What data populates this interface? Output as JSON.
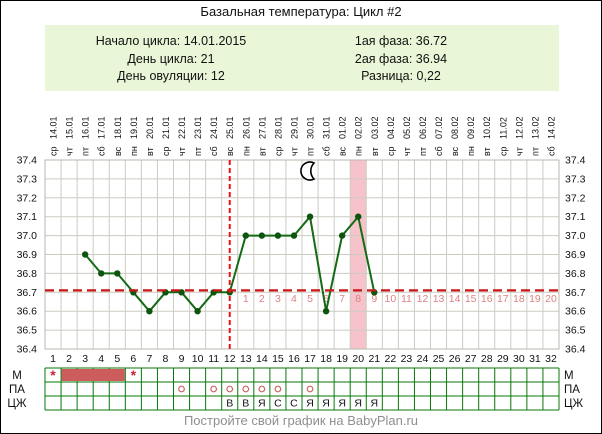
{
  "window": {
    "title": "Базальная температура: Цикл #2"
  },
  "info_box": {
    "left": [
      {
        "label": "Начало цикла:",
        "value": "14.01.2015"
      },
      {
        "label": "День цикла:",
        "value": "21"
      },
      {
        "label": "День овуляции:",
        "value": "12"
      }
    ],
    "right": [
      {
        "label": "1ая фаза:",
        "value": "36.72"
      },
      {
        "label": "2ая фаза:",
        "value": "36.94"
      },
      {
        "label": "Разница:",
        "value": "0,22"
      }
    ]
  },
  "footer": {
    "text": "Постройте свой график на BabyPlan.ru"
  },
  "chart_data": {
    "type": "line",
    "title": "Базальная температура: Цикл #2",
    "x_days": [
      1,
      2,
      3,
      4,
      5,
      6,
      7,
      8,
      9,
      10,
      11,
      12,
      13,
      14,
      15,
      16,
      17,
      18,
      19,
      20,
      21,
      22,
      23,
      24,
      25,
      26,
      27,
      28,
      29,
      30,
      31,
      32
    ],
    "dates": [
      "14.01",
      "15.01",
      "16.01",
      "17.01",
      "18.01",
      "19.01",
      "20.01",
      "21.01",
      "22.01",
      "23.01",
      "24.01",
      "25.01",
      "26.01",
      "27.01",
      "28.01",
      "29.01",
      "30.01",
      "31.01",
      "01.02",
      "02.02",
      "03.02",
      "04.02",
      "05.02",
      "06.02",
      "07.02",
      "08.02",
      "09.02",
      "10.02",
      "11.02",
      "12.02",
      "13.02",
      "14.02"
    ],
    "weekdays": [
      "ср",
      "чт",
      "пт",
      "сб",
      "вс",
      "пн",
      "вт",
      "ср",
      "чт",
      "пт",
      "сб",
      "вс",
      "пн",
      "вт",
      "ср",
      "чт",
      "пт",
      "сб",
      "вс",
      "пн",
      "вт",
      "ср",
      "чт",
      "пт",
      "сб",
      "вс",
      "пн",
      "вт",
      "ср",
      "чт",
      "пт",
      "сб"
    ],
    "temps": [
      null,
      null,
      36.9,
      36.8,
      36.8,
      36.7,
      36.6,
      36.7,
      36.7,
      36.6,
      36.7,
      36.7,
      37.0,
      37.0,
      37.0,
      37.0,
      37.1,
      36.6,
      37.0,
      37.1,
      36.7,
      null,
      null,
      null,
      null,
      null,
      null,
      null,
      null,
      null,
      null,
      null
    ],
    "ylim": [
      36.4,
      37.4
    ],
    "yticks": [
      "36.4",
      "36.5",
      "36.6",
      "36.7",
      "36.8",
      "36.9",
      "37.0",
      "37.1",
      "37.2",
      "37.3",
      "37.4"
    ],
    "coverline": 36.71,
    "ovulation_day": 12,
    "dpo_numbers": {
      "first_day": 13,
      "count": 20
    },
    "highlight_day": 20,
    "moon_day": 17,
    "legend_rows": {
      "left_labels": [
        "М",
        "ПА",
        "ЦЖ"
      ],
      "right_labels": [
        "М",
        "ПА",
        "ЦЖ"
      ],
      "menstruation_star_days": [
        1,
        6
      ],
      "menstruation_fill_days": [
        2,
        3,
        4,
        5
      ],
      "intercourse_days": [
        9,
        11,
        12,
        13,
        14,
        15,
        17
      ],
      "fluid_letters": {
        "12": "В",
        "13": "В",
        "14": "Я",
        "15": "С",
        "16": "С",
        "17": "Я",
        "18": "Я",
        "19": "Я",
        "20": "Я",
        "21": "Я"
      }
    },
    "colors": {
      "temp_line": "#156b15",
      "point": "#0d540d",
      "coverline": "#cc1515",
      "ovulation_line": "#ee1111",
      "dpo_number": "#dd8282",
      "band": "#f6c3ca",
      "grid": "#ccccc2",
      "plot_border": "#b9b9af",
      "table_border": "#067806",
      "mens_fill": "#cd5c5c",
      "mens_star": "#cc2233",
      "intercourse_mark": "#cc6666",
      "axis_text": "#111111",
      "info_bg": "#eaf6d8",
      "footer_text": "#8f8f8f"
    }
  }
}
